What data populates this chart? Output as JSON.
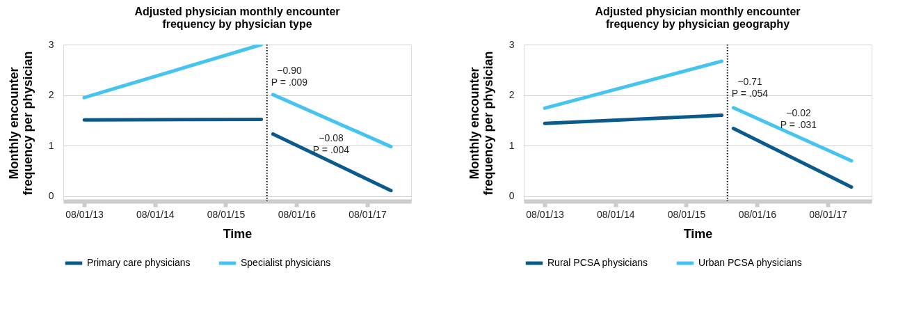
{
  "chart_data": [
    {
      "type": "line",
      "title": [
        "Adjusted physician monthly encounter",
        "frequency by physician type"
      ],
      "xlabel": "Time",
      "ylabel": [
        "Monthly encounter",
        "frequency per physician"
      ],
      "x": [
        "2013-08-01",
        "2016-02-01",
        "2016-03-01",
        "2016-04-01",
        "2017-12-01"
      ],
      "series": [
        {
          "name": "Primary care physicians",
          "color": "#0b5a8c",
          "values": [
            1.51,
            1.52,
            null,
            1.23,
            0.11
          ]
        },
        {
          "name": "Specialist physicians",
          "color": "#45c4f0",
          "values": [
            1.95,
            3.0,
            null,
            2.01,
            0.98
          ]
        }
      ],
      "xlim": [
        "2013-04-15",
        "2018-03-15"
      ],
      "xticks": [
        {
          "value": "2013-08-01",
          "label": "08/01/13"
        },
        {
          "value": "2014-08-01",
          "label": "08/01/14"
        },
        {
          "value": "2015-08-01",
          "label": "08/01/15"
        },
        {
          "value": "2016-08-01",
          "label": "08/01/16"
        },
        {
          "value": "2017-08-01",
          "label": "08/01/17"
        }
      ],
      "ylim": [
        -0.1,
        3
      ],
      "yticks": [
        0,
        1,
        2,
        3
      ],
      "grid": "y",
      "legend": "bottom",
      "marker": "none",
      "line_style": "solid",
      "ref_lines": [
        {
          "axis": "x",
          "value": "2016-03-01",
          "color": "#000000",
          "line_style": "dotted"
        }
      ],
      "annotations": [
        "−0.90\nP = .009",
        "−0.08\nP = .004"
      ]
    },
    {
      "type": "line",
      "title": [
        "Adjusted physician monthly encounter",
        "frequency by physician geography"
      ],
      "xlabel": "Time",
      "ylabel": [
        "Monthly encounter",
        "frequency per physician"
      ],
      "x": [
        "2013-08-01",
        "2016-02-01",
        "2016-03-01",
        "2016-04-01",
        "2017-12-01"
      ],
      "series": [
        {
          "name": "Rural PCSA physicians",
          "color": "#0b5a8c",
          "values": [
            1.44,
            1.6,
            null,
            1.34,
            0.18
          ]
        },
        {
          "name": "Urban PCSA physicians",
          "color": "#45c4f0",
          "values": [
            1.74,
            2.67,
            null,
            1.75,
            0.7
          ]
        }
      ],
      "xlim": [
        "2013-04-15",
        "2018-03-15"
      ],
      "xticks": [
        {
          "value": "2013-08-01",
          "label": "08/01/13"
        },
        {
          "value": "2014-08-01",
          "label": "08/01/14"
        },
        {
          "value": "2015-08-01",
          "label": "08/01/15"
        },
        {
          "value": "2016-08-01",
          "label": "08/01/16"
        },
        {
          "value": "2017-08-01",
          "label": "08/01/17"
        }
      ],
      "ylim": [
        -0.1,
        3
      ],
      "yticks": [
        0,
        1,
        2,
        3
      ],
      "grid": "y",
      "legend": "bottom",
      "marker": "none",
      "line_style": "solid",
      "ref_lines": [
        {
          "axis": "x",
          "value": "2016-03-01",
          "color": "#000000",
          "line_style": "dotted"
        }
      ],
      "annotations": [
        "−0.71\nP = .054",
        "−0.02\nP = .031"
      ]
    }
  ]
}
